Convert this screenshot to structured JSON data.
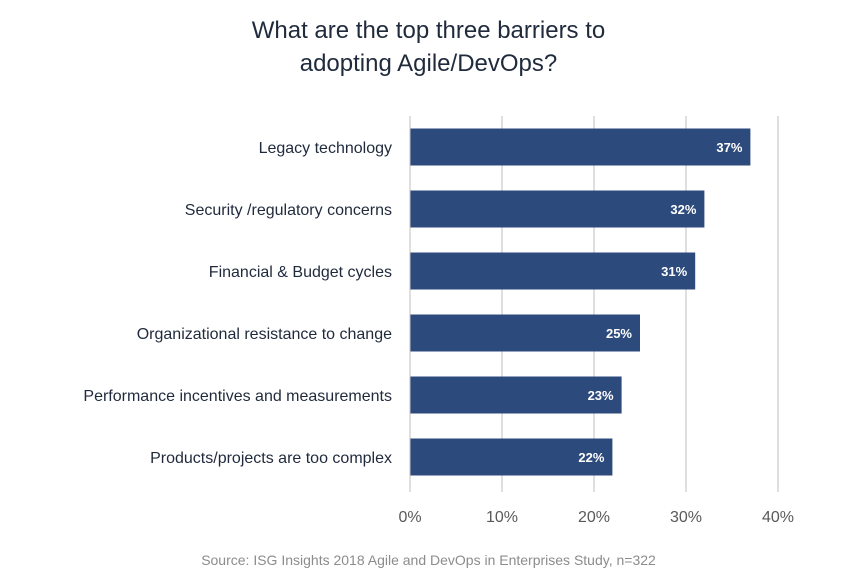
{
  "title_lines": [
    "What are the top three barriers to",
    "adopting Agile/DevOps?"
  ],
  "source": "Source: ISG Insights 2018 Agile and DevOps in Enterprises Study, n=322",
  "colors": {
    "bar": "#2d4a7c",
    "bar_label": "#ffffff",
    "grid": "#bfbfbf",
    "category_text": "#1f2a3c",
    "tick_text": "#595959"
  },
  "chart_data": {
    "type": "bar",
    "orientation": "horizontal",
    "categories": [
      "Legacy technology",
      "Security /regulatory concerns",
      "Financial & Budget cycles",
      "Organizational resistance to change",
      "Performance incentives and measurements",
      "Products/projects are too complex"
    ],
    "values": [
      37,
      32,
      31,
      25,
      23,
      22
    ],
    "value_labels": [
      "37%",
      "32%",
      "31%",
      "25%",
      "23%",
      "22%"
    ],
    "xlim": [
      0,
      40
    ],
    "xticks": [
      "0%",
      "10%",
      "20%",
      "30%",
      "40%"
    ],
    "grid": true
  }
}
